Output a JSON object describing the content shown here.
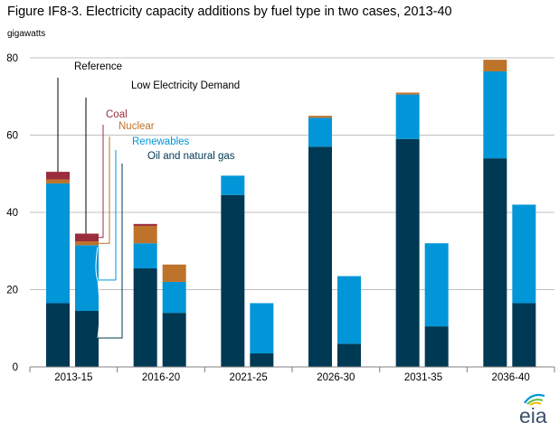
{
  "title": "Figure IF8-3. Electricity capacity additions by fuel type in two cases, 2013-40",
  "logo_text": "eia",
  "chart_data": {
    "type": "bar",
    "stacked": true,
    "ylabel": "gigawatts",
    "ylim": [
      0,
      80
    ],
    "yticks": [
      0,
      20,
      40,
      60,
      80
    ],
    "grid": true,
    "categories": [
      "2013-15",
      "2016-20",
      "2021-25",
      "2026-30",
      "2031-35",
      "2036-40"
    ],
    "cases": [
      "Reference",
      "Low Electricity Demand"
    ],
    "series": [
      {
        "name": "Oil and natural gas",
        "color": "#003953",
        "values": {
          "Reference": [
            16.5,
            25.5,
            44.5,
            57,
            59,
            54
          ],
          "Low Electricity Demand": [
            14.5,
            14,
            3.5,
            6,
            10.5,
            16.5
          ]
        }
      },
      {
        "name": "Renewables",
        "color": "#0096d7",
        "values": {
          "Reference": [
            31,
            6.5,
            5,
            7.5,
            11.5,
            22.5
          ],
          "Low Electricity Demand": [
            17,
            8,
            13,
            17.5,
            21.5,
            25.5
          ]
        }
      },
      {
        "name": "Nuclear",
        "color": "#bd732a",
        "values": {
          "Reference": [
            1,
            4.5,
            0,
            0.5,
            0.5,
            3
          ],
          "Low Electricity Demand": [
            1,
            4.5,
            0,
            0,
            0,
            0
          ]
        }
      },
      {
        "name": "Coal",
        "color": "#9b2d3c",
        "values": {
          "Reference": [
            2,
            0.5,
            0,
            0,
            0,
            0
          ],
          "Low Electricity Demand": [
            2,
            0,
            0,
            0,
            0,
            0
          ]
        }
      }
    ],
    "annotation_colors": {
      "Reference": "#000000",
      "Low Electricity Demand": "#000000",
      "Coal": "#9b2d3c",
      "Nuclear": "#bd732a",
      "Renewables": "#0096d7",
      "Oil and natural gas": "#003953"
    }
  }
}
